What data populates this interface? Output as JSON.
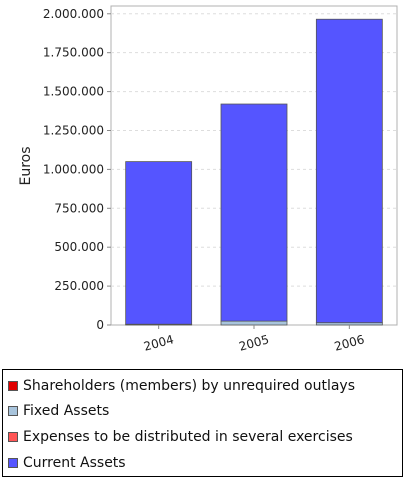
{
  "chart_data": {
    "type": "bar",
    "stacked": true,
    "categories": [
      "2004",
      "2005",
      "2006"
    ],
    "ylabel": "Euros",
    "xlabel": "",
    "ylim": [
      0,
      2050000
    ],
    "yticks": [
      {
        "value": 0,
        "label": "0"
      },
      {
        "value": 250000,
        "label": "250.000"
      },
      {
        "value": 500000,
        "label": "500.000"
      },
      {
        "value": 750000,
        "label": "750.000"
      },
      {
        "value": 1000000,
        "label": "1.000.000"
      },
      {
        "value": 1250000,
        "label": "1.250.000"
      },
      {
        "value": 1500000,
        "label": "1.500.000"
      },
      {
        "value": 1750000,
        "label": "1.750.000"
      },
      {
        "value": 2000000,
        "label": "2.000.000"
      }
    ],
    "grid": true,
    "legend_position": "bottom",
    "series": [
      {
        "name": "Shareholders (members) by unrequired outlays",
        "color": "#e00000",
        "values": [
          0,
          0,
          0
        ]
      },
      {
        "name": "Fixed Assets",
        "color": "#a8c4dc",
        "values": [
          5000,
          25000,
          15000
        ]
      },
      {
        "name": "Expenses to be distributed in several exercises",
        "color": "#ff5555",
        "values": [
          0,
          0,
          0
        ]
      },
      {
        "name": "Current Assets",
        "color": "#5555ff",
        "values": [
          1045000,
          1395000,
          1950000
        ]
      }
    ]
  }
}
